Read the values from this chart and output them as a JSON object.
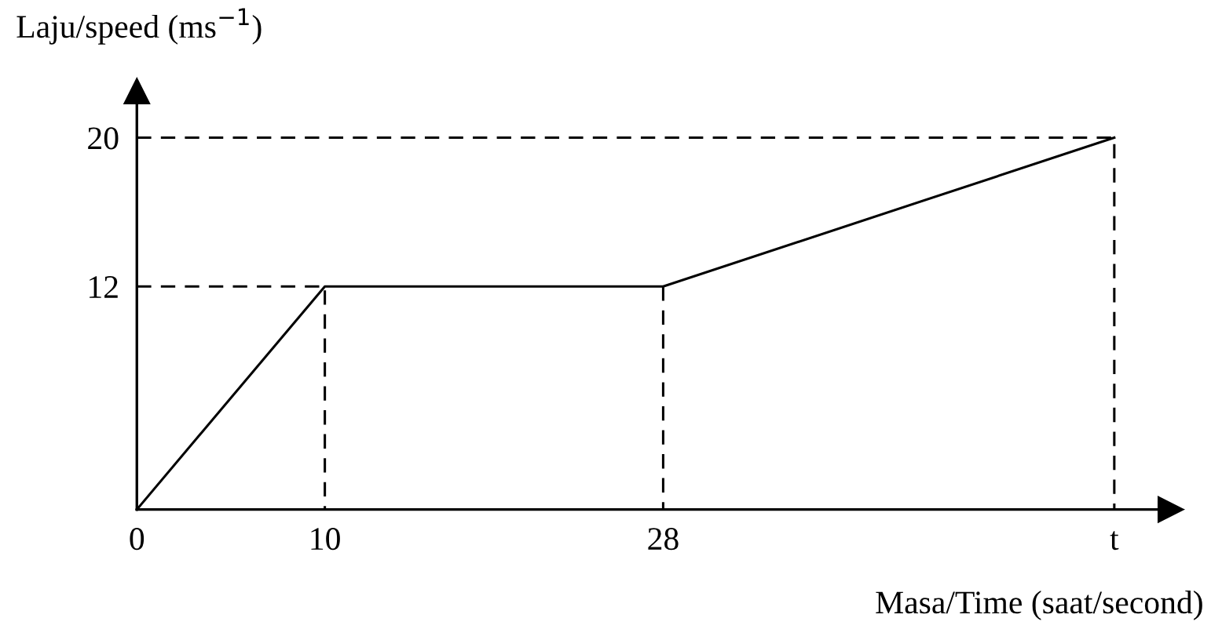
{
  "chart_data": {
    "type": "line",
    "xlabel": "Masa/Time (saat/second)",
    "ylabel": "Laju/speed (ms$^{−1}$)",
    "x": [
      0,
      10,
      28,
      52
    ],
    "series": [
      {
        "color": "#000000",
        "values": [
          0,
          12,
          12,
          20
        ],
        "line_style": "solid"
      },
      {
        "color": "#000000",
        "x": [
          0,
          10,
          10
        ],
        "values": [
          12,
          12,
          0
        ],
        "line_style": "dashed"
      },
      {
        "color": "#000000",
        "x": [
          28,
          28
        ],
        "values": [
          12,
          0
        ],
        "line_style": "dashed"
      },
      {
        "color": "#000000",
        "x": [
          0,
          52,
          52
        ],
        "values": [
          20,
          20,
          0
        ],
        "line_style": "dashed"
      }
    ],
    "xlim": [
      0,
      55
    ],
    "ylim": [
      0,
      22.5
    ],
    "xticks": [
      {
        "value": 0,
        "label": "0"
      },
      10,
      28,
      {
        "value": 52,
        "label": "t"
      }
    ],
    "yticks": [
      12,
      20
    ],
    "grid": false,
    "legend": false,
    "marker": "none"
  }
}
